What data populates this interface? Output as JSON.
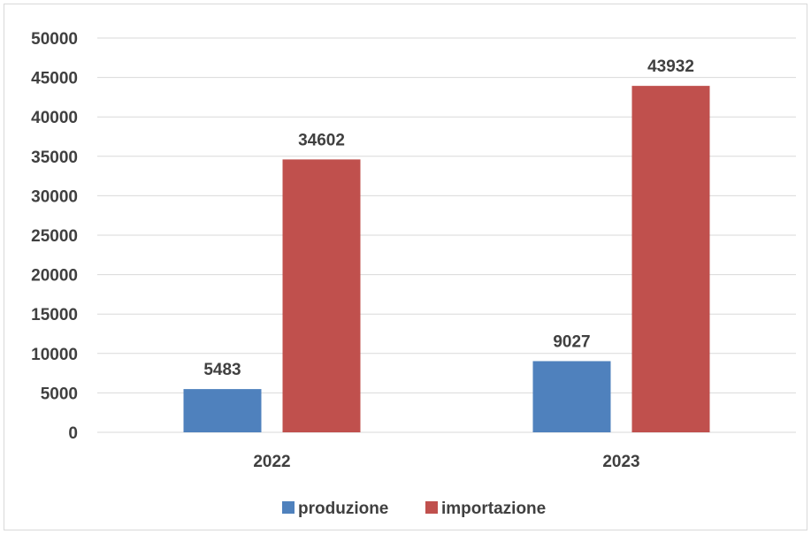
{
  "chart_data": {
    "type": "bar",
    "title": "",
    "xlabel": "",
    "ylabel": "",
    "categories": [
      "2022",
      "2023"
    ],
    "series": [
      {
        "name": "produzione",
        "values": [
          5483,
          9027
        ],
        "color": "#4f81bd"
      },
      {
        "name": "importazione",
        "values": [
          34602,
          43932
        ],
        "color": "#c0504d"
      }
    ],
    "ylim": [
      0,
      50000
    ],
    "yticks": [
      0,
      5000,
      10000,
      15000,
      20000,
      25000,
      30000,
      35000,
      40000,
      45000,
      50000
    ],
    "grid": true,
    "legend": "bottom",
    "data_labels": true
  }
}
